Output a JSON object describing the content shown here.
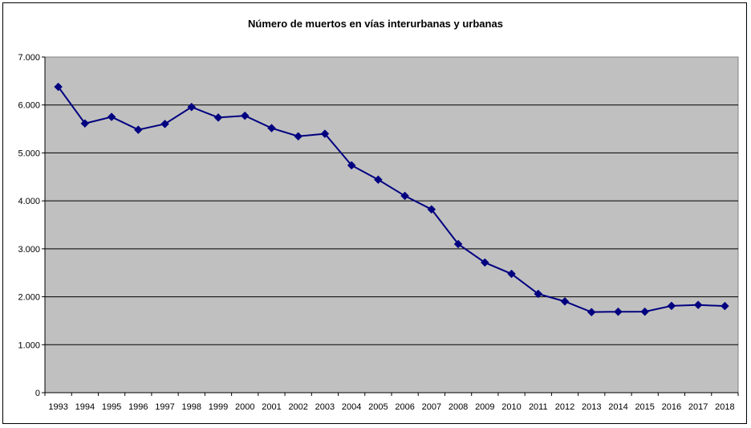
{
  "chart_data": {
    "type": "line",
    "title": "Número de muertos en vías interurbanas y urbanas",
    "xlabel": "",
    "ylabel": "",
    "categories": [
      "1993",
      "1994",
      "1995",
      "1996",
      "1997",
      "1998",
      "1999",
      "2000",
      "2001",
      "2002",
      "2003",
      "2004",
      "2005",
      "2006",
      "2007",
      "2008",
      "2009",
      "2010",
      "2011",
      "2012",
      "2013",
      "2014",
      "2015",
      "2016",
      "2017",
      "2018"
    ],
    "series": [
      {
        "values": [
          6378,
          5615,
          5751,
          5483,
          5604,
          5957,
          5738,
          5776,
          5517,
          5347,
          5399,
          4741,
          4442,
          4104,
          3823,
          3100,
          2714,
          2478,
          2060,
          1903,
          1680,
          1688,
          1689,
          1810,
          1830,
          1806
        ]
      }
    ],
    "ylim": [
      0,
      7000
    ],
    "yticks": [
      0,
      1000,
      2000,
      3000,
      4000,
      5000,
      6000,
      7000
    ],
    "ytick_labels": [
      "0",
      "1.000",
      "2.000",
      "3.000",
      "4.000",
      "5.000",
      "6.000",
      "7.000"
    ],
    "grid": true,
    "legend": "none",
    "colors": {
      "line": "#000080",
      "marker": "#000080",
      "plot_background": "#c0c0c0",
      "grid": "#000000"
    }
  }
}
